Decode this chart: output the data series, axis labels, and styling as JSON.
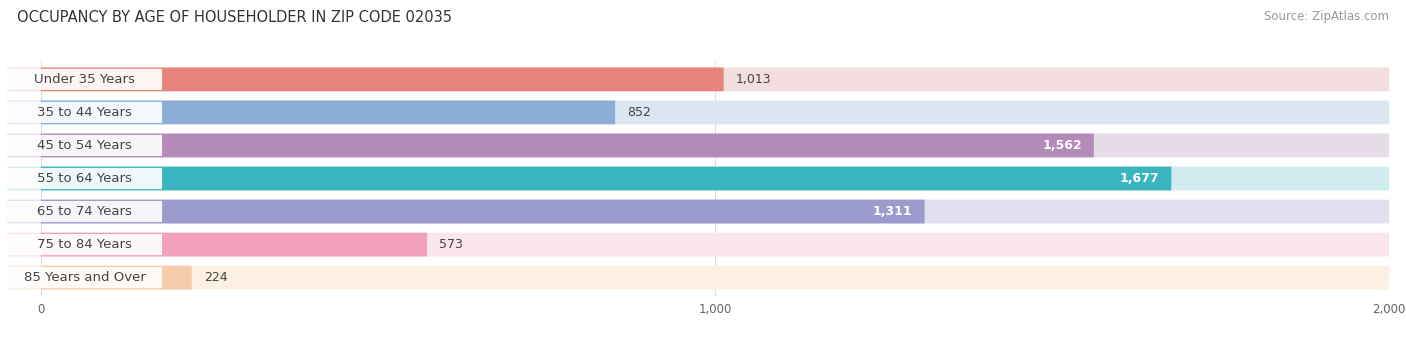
{
  "title": "OCCUPANCY BY AGE OF HOUSEHOLDER IN ZIP CODE 02035",
  "source": "Source: ZipAtlas.com",
  "categories": [
    "Under 35 Years",
    "35 to 44 Years",
    "45 to 54 Years",
    "55 to 64 Years",
    "65 to 74 Years",
    "75 to 84 Years",
    "85 Years and Over"
  ],
  "values": [
    1013,
    852,
    1562,
    1677,
    1311,
    573,
    224
  ],
  "bar_colors": [
    "#E8857A",
    "#8AAED6",
    "#B48AB8",
    "#3AB5BF",
    "#9B9BCE",
    "#F2A0BB",
    "#F5CBAA"
  ],
  "bar_bg_colors": [
    "#F2DEDE",
    "#DDE4F2",
    "#E6DCE8",
    "#D0ECEE",
    "#E0E0F0",
    "#FAE4EE",
    "#FBF0E2"
  ],
  "label_bg_color": "#ffffff",
  "xlim_min": -50,
  "xlim_max": 2000,
  "xticks": [
    0,
    1000,
    2000
  ],
  "value_label_inside": [
    false,
    false,
    true,
    true,
    true,
    false,
    false
  ],
  "title_fontsize": 10.5,
  "source_fontsize": 8.5,
  "label_fontsize": 9.5,
  "value_fontsize": 9,
  "background_color": "#ffffff",
  "grid_color": "#dddddd",
  "text_color": "#444444",
  "bar_height": 0.72,
  "bar_gap": 0.18
}
